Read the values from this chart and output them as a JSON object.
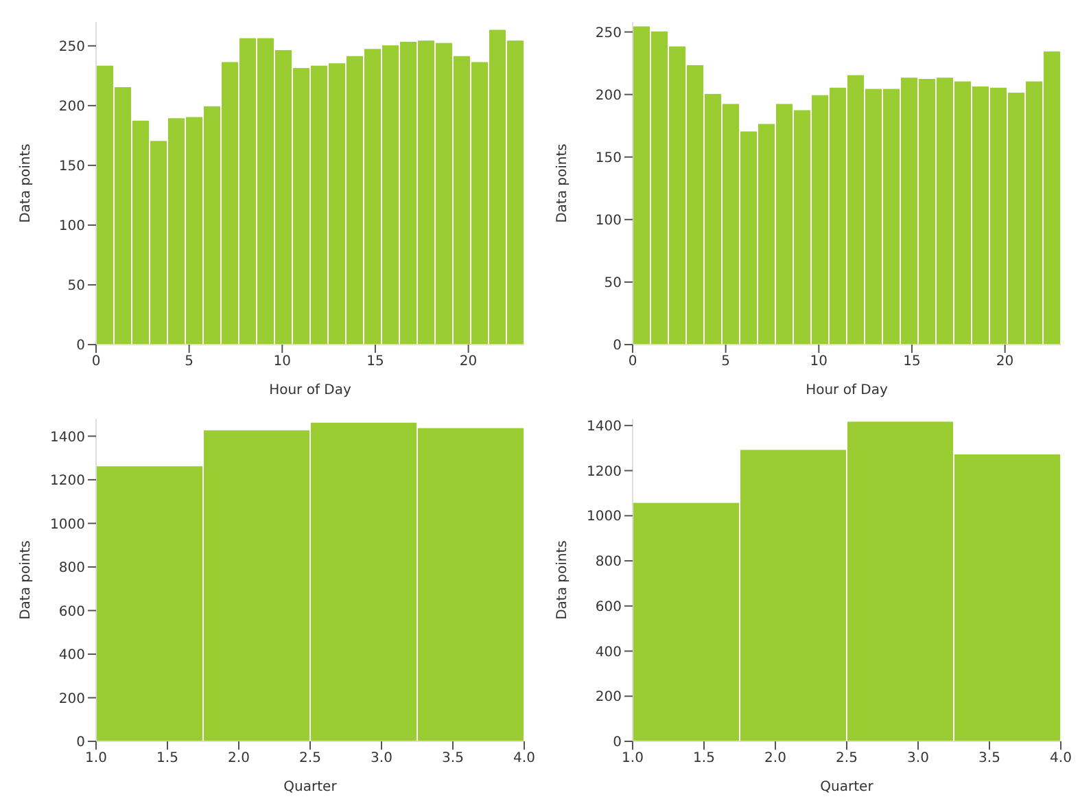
{
  "chart_data": [
    {
      "type": "histogram",
      "xlabel": "Hour of Day",
      "ylabel": "Data points",
      "color": "#9acd32",
      "bins": [
        0,
        0.9583,
        1.9167,
        2.875,
        3.8333,
        4.7917,
        5.75,
        6.7083,
        7.6667,
        8.625,
        9.5833,
        10.5417,
        11.5,
        12.4583,
        13.4167,
        14.375,
        15.3333,
        16.2917,
        17.25,
        18.2083,
        19.1667,
        20.125,
        21.0833,
        22.0417,
        23
      ],
      "values": [
        234,
        216,
        188,
        171,
        190,
        191,
        200,
        237,
        257,
        257,
        247,
        232,
        234,
        236,
        242,
        248,
        251,
        254,
        255,
        253,
        242,
        237,
        264,
        255
      ],
      "xlim": [
        0,
        23
      ],
      "xticks": [
        0,
        5,
        10,
        15,
        20
      ],
      "ylim": [
        0,
        270
      ],
      "yticks": [
        0,
        50,
        100,
        150,
        200,
        250
      ]
    },
    {
      "type": "histogram",
      "xlabel": "Hour of Day",
      "ylabel": "Data points",
      "color": "#9acd32",
      "bins": [
        0,
        0.9583,
        1.9167,
        2.875,
        3.8333,
        4.7917,
        5.75,
        6.7083,
        7.6667,
        8.625,
        9.5833,
        10.5417,
        11.5,
        12.4583,
        13.4167,
        14.375,
        15.3333,
        16.2917,
        17.25,
        18.2083,
        19.1667,
        20.125,
        21.0833,
        22.0417,
        23
      ],
      "values": [
        255,
        251,
        239,
        224,
        201,
        193,
        171,
        177,
        193,
        188,
        200,
        206,
        216,
        205,
        205,
        214,
        213,
        214,
        211,
        207,
        206,
        202,
        211,
        235
      ],
      "xlim": [
        0,
        23
      ],
      "xticks": [
        0,
        5,
        10,
        15,
        20
      ],
      "ylim": [
        0,
        258
      ],
      "yticks": [
        0,
        50,
        100,
        150,
        200,
        250
      ]
    },
    {
      "type": "histogram",
      "xlabel": "Quarter",
      "ylabel": "Data points",
      "color": "#9acd32",
      "bins": [
        1,
        1.75,
        2.5,
        3.25,
        4
      ],
      "values": [
        1265,
        1430,
        1465,
        1440
      ],
      "xlim": [
        1,
        4
      ],
      "xticks": [
        {
          "value": 1,
          "label": "1.0"
        },
        1.5,
        {
          "value": 2,
          "label": "2.0"
        },
        2.5,
        {
          "value": 3,
          "label": "3.0"
        },
        3.5,
        {
          "value": 4,
          "label": "4.0"
        }
      ],
      "ylim": [
        0,
        1480
      ],
      "yticks": [
        0,
        200,
        400,
        600,
        800,
        1000,
        1200,
        1400
      ]
    },
    {
      "type": "histogram",
      "xlabel": "Quarter",
      "ylabel": "Data points",
      "color": "#9acd32",
      "bins": [
        1,
        1.75,
        2.5,
        3.25,
        4
      ],
      "values": [
        1060,
        1295,
        1420,
        1275
      ],
      "xlim": [
        1,
        4
      ],
      "xticks": [
        {
          "value": 1,
          "label": "1.0"
        },
        1.5,
        {
          "value": 2,
          "label": "2.0"
        },
        2.5,
        {
          "value": 3,
          "label": "3.0"
        },
        3.5,
        {
          "value": 4,
          "label": "4.0"
        }
      ],
      "ylim": [
        0,
        1430
      ],
      "yticks": [
        0,
        200,
        400,
        600,
        800,
        1000,
        1200,
        1400
      ]
    }
  ]
}
